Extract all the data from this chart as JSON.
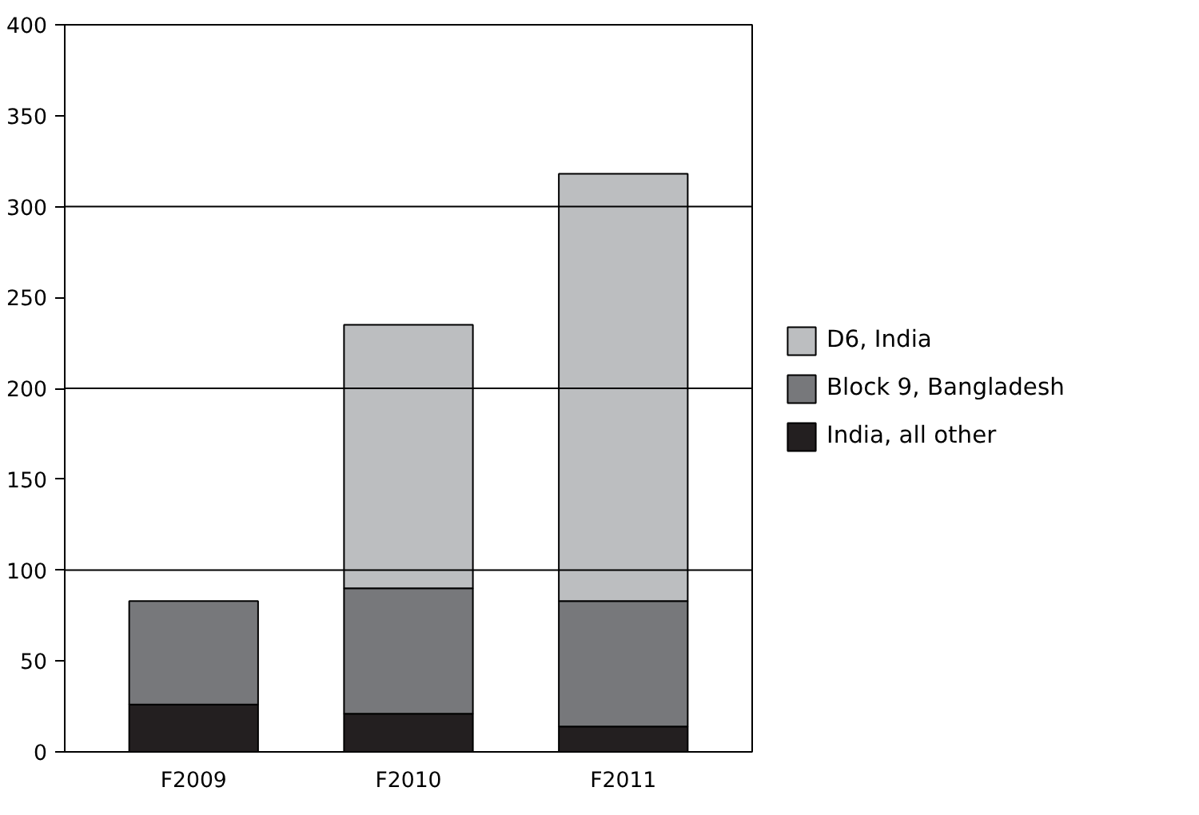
{
  "chart_data": {
    "type": "bar",
    "stacked": true,
    "categories": [
      "F2009",
      "F2010",
      "F2011"
    ],
    "series": [
      {
        "name": "India, all other",
        "color": "#231f20",
        "values": [
          26,
          21,
          14
        ]
      },
      {
        "name": "Block 9, Bangladesh",
        "color": "#77787b",
        "values": [
          57,
          69,
          69
        ]
      },
      {
        "name": "D6, India",
        "color": "#bcbec0",
        "values": [
          null,
          145,
          235
        ]
      }
    ],
    "ylim": [
      0,
      400
    ],
    "yticks": [
      0,
      50,
      100,
      150,
      200,
      250,
      300,
      350,
      400
    ],
    "ref_lines": [
      {
        "axis": "y",
        "value": 100,
        "color": "#000000"
      },
      {
        "axis": "y",
        "value": 200,
        "color": "#000000"
      },
      {
        "axis": "y",
        "value": 300,
        "color": "#000000"
      }
    ],
    "legend": "right"
  }
}
